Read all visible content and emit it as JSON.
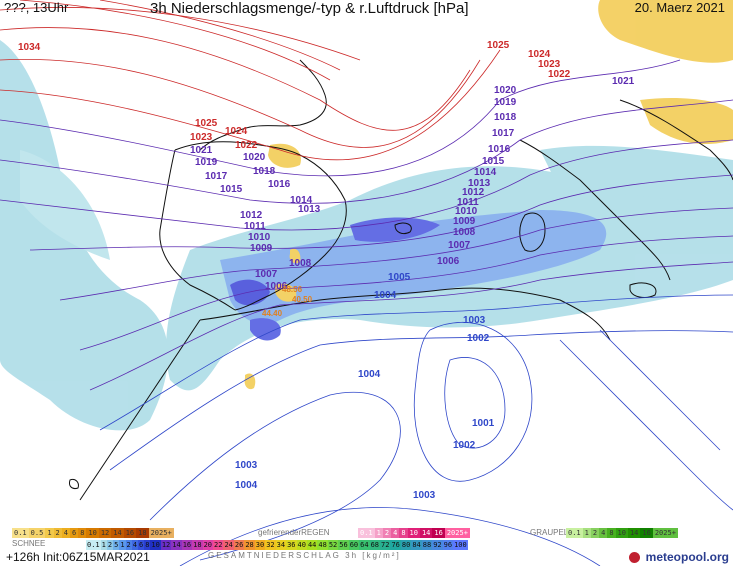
{
  "header": {
    "left": "???, 13Uhr",
    "center": "3h Niederschlagsmenge/-typ & r.Luftdruck [hPa]",
    "right": "20. Maerz 2021"
  },
  "legend": {
    "schnee_label": "SCHNEE",
    "regen_label": "gefrierenderREGEN",
    "graupel_label": "GRAUPEL",
    "gesamt_label": "GESAMTNIEDERSCHLAG 3h [kg/m²]",
    "snow_values": [
      "0.1",
      "0.5",
      "1",
      "2",
      "4",
      "6",
      "8",
      "10",
      "12",
      "14",
      "16",
      "18",
      "2025+"
    ],
    "freezing_values": [
      "0.1",
      "1",
      "2",
      "4",
      "8",
      "10",
      "14",
      "16",
      "2025+"
    ],
    "graupel_values": [
      "0.1",
      "1",
      "2",
      "4",
      "8",
      "10",
      "14",
      "16",
      "2025+"
    ],
    "total_values": [
      "0.1",
      "1",
      "2",
      "5",
      "1",
      "2",
      "4",
      "6",
      "8",
      "10",
      "12",
      "14",
      "16",
      "18",
      "20",
      "22",
      "24",
      "26",
      "28",
      "30",
      "32",
      "34",
      "36",
      "40",
      "44",
      "48",
      "52",
      "56",
      "60",
      "64",
      "68",
      "72",
      "76",
      "80",
      "84",
      "88",
      "92",
      "96",
      "100"
    ]
  },
  "footer": {
    "run": "+126h Init:06Z15MAR2021",
    "brand": "meteopool.org"
  },
  "colors": {
    "high_isobar": "#cc2a2a",
    "mid_isobar": "#5b2bb0",
    "low_isobar": "#2f47c9",
    "precip_light": "#9ed3e0",
    "precip_mid": "#6f9be6",
    "precip_heavy": "#3a3fd8",
    "snow": "#f0c030"
  },
  "pressure_labels": {
    "red": [
      "1034",
      "1025",
      "1024",
      "1023",
      "1022",
      "1025",
      "1024",
      "1023",
      "1022"
    ],
    "purple": [
      "1021",
      "1020",
      "1019",
      "1018",
      "1017",
      "1016",
      "1015",
      "1014",
      "1013",
      "1012",
      "1011",
      "1010",
      "1009",
      "1008",
      "1007",
      "1006",
      "1021",
      "1020",
      "1019",
      "1018",
      "1017",
      "1016",
      "1015",
      "1014",
      "1013",
      "1012",
      "1011",
      "1010",
      "1009",
      "1008",
      "1007",
      "1006"
    ],
    "blue": [
      "1005",
      "1004",
      "1004",
      "1003",
      "1002",
      "1001",
      "1002",
      "1003",
      "1004",
      "1003"
    ],
    "orange": [
      "48.56",
      "40.50",
      "44.40"
    ]
  }
}
